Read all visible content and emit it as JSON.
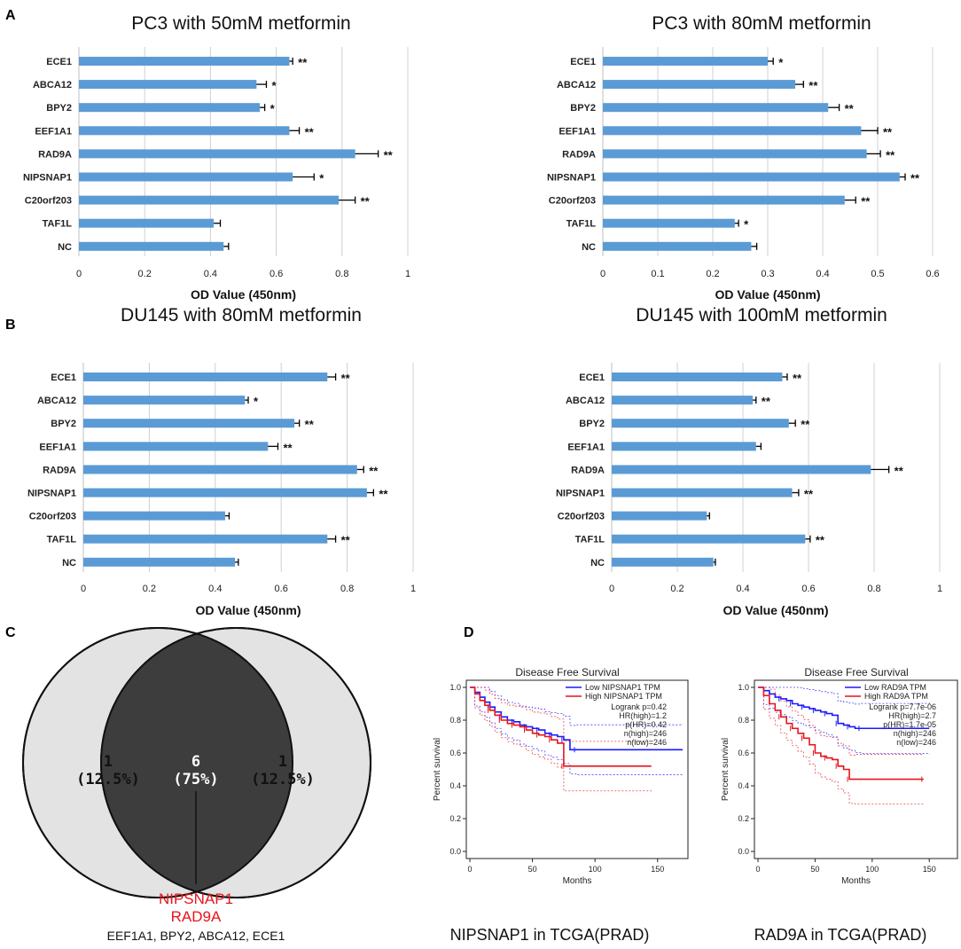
{
  "panel_letters": {
    "a": "A",
    "b": "B",
    "c": "C",
    "d": "D"
  },
  "colors": {
    "bar": "#5b9bd5",
    "low": "#1a1aff",
    "high": "#e8141c",
    "venn_fill": "#e3e3e3",
    "venn_overlap": "#3d3d3d",
    "highlight": "#e8141c"
  },
  "chart_data": [
    {
      "type": "bar",
      "orientation": "horizontal",
      "title": "PC3 with 50mM metformin",
      "xlabel": "OD Value (450nm)",
      "categories": [
        "ECE1",
        "ABCA12",
        "BPY2",
        "EEF1A1",
        "RAD9A",
        "NIPSNAP1",
        "C20orf203",
        "TAF1L",
        "NC"
      ],
      "values": [
        0.64,
        0.54,
        0.55,
        0.64,
        0.84,
        0.65,
        0.79,
        0.41,
        0.44
      ],
      "errors": [
        0.01,
        0.03,
        0.015,
        0.03,
        0.07,
        0.065,
        0.05,
        0.02,
        0.015
      ],
      "significance": [
        "**",
        "*",
        "*",
        "**",
        "**",
        "*",
        "**",
        "",
        ""
      ],
      "xlim": [
        0,
        1
      ],
      "xticks": [
        "0",
        "0.2",
        "0.4",
        "0.6",
        "0.8",
        "1"
      ]
    },
    {
      "type": "bar",
      "orientation": "horizontal",
      "title": "PC3 with 80mM metformin",
      "xlabel": "OD Value (450nm)",
      "categories": [
        "ECE1",
        "ABCA12",
        "BPY2",
        "EEF1A1",
        "RAD9A",
        "NIPSNAP1",
        "C20orf203",
        "TAF1L",
        "NC"
      ],
      "values": [
        0.3,
        0.35,
        0.41,
        0.47,
        0.48,
        0.54,
        0.44,
        0.24,
        0.27
      ],
      "errors": [
        0.01,
        0.015,
        0.02,
        0.03,
        0.025,
        0.01,
        0.02,
        0.007,
        0.01
      ],
      "significance": [
        "*",
        "**",
        "**",
        "**",
        "**",
        "**",
        "**",
        "*",
        ""
      ],
      "xlim": [
        0,
        0.6
      ],
      "xticks": [
        "0",
        "0.1",
        "0.2",
        "0.3",
        "0.4",
        "0.5",
        "0.6"
      ]
    },
    {
      "type": "bar",
      "orientation": "horizontal",
      "title": "DU145 with 80mM metformin",
      "xlabel": "OD Value (450nm)",
      "categories": [
        "ECE1",
        "ABCA12",
        "BPY2",
        "EEF1A1",
        "RAD9A",
        "NIPSNAP1",
        "C20orf203",
        "TAF1L",
        "NC"
      ],
      "values": [
        0.74,
        0.49,
        0.64,
        0.56,
        0.83,
        0.86,
        0.43,
        0.74,
        0.46
      ],
      "errors": [
        0.025,
        0.01,
        0.015,
        0.03,
        0.02,
        0.02,
        0.012,
        0.025,
        0.01
      ],
      "significance": [
        "**",
        "*",
        "**",
        "**",
        "**",
        "**",
        "",
        "**",
        ""
      ],
      "xlim": [
        0,
        1
      ],
      "xticks": [
        "0",
        "0.2",
        "0.4",
        "0.6",
        "0.8",
        "1"
      ]
    },
    {
      "type": "bar",
      "orientation": "horizontal",
      "title": "DU145 with 100mM metformin",
      "xlabel": "OD Value (450nm)",
      "categories": [
        "ECE1",
        "ABCA12",
        "BPY2",
        "EEF1A1",
        "RAD9A",
        "NIPSNAP1",
        "C20orf203",
        "TAF1L",
        "NC"
      ],
      "values": [
        0.52,
        0.43,
        0.54,
        0.44,
        0.79,
        0.55,
        0.29,
        0.59,
        0.31
      ],
      "errors": [
        0.015,
        0.01,
        0.02,
        0.015,
        0.055,
        0.02,
        0.008,
        0.015,
        0.006
      ],
      "significance": [
        "**",
        "**",
        "**",
        "",
        "**",
        "**",
        "",
        "**",
        ""
      ],
      "xlim": [
        0,
        1
      ],
      "xticks": [
        "0",
        "0.2",
        "0.4",
        "0.6",
        "0.8",
        "1"
      ]
    },
    {
      "type": "venn",
      "left": {
        "count": "1",
        "percent": "(12.5%)"
      },
      "overlap": {
        "count": "6",
        "percent": "(75%)"
      },
      "right": {
        "count": "1",
        "percent": "(12.5%)"
      },
      "highlight_genes": [
        "NIPSNAP1",
        "RAD9A"
      ],
      "other_genes": "EEF1A1, BPY2, ABCA12, ECE1"
    },
    {
      "type": "line",
      "subtype": "kaplan-meier",
      "title": "Disease Free Survival",
      "xlabel": "Months",
      "ylabel": "Percent survival",
      "caption": "NIPSNAP1 in TCGA(PRAD)",
      "xlim": [
        0,
        170
      ],
      "ylim": [
        0,
        1
      ],
      "xticks": [
        "0",
        "50",
        "100",
        "150"
      ],
      "yticks": [
        "0.0",
        "0.2",
        "0.4",
        "0.6",
        "0.8",
        "1.0"
      ],
      "legend": [
        "Low NIPSNAP1 TPM",
        "High NIPSNAP1 TPM"
      ],
      "stats": [
        "Logrank p=0.42",
        "HR(high)=1.2",
        "p(HR)=0.42",
        "n(high)=246",
        "n(low)=246"
      ],
      "series": [
        {
          "name": "Low NIPSNAP1 TPM",
          "x": [
            0,
            4,
            8,
            12,
            16,
            20,
            25,
            30,
            35,
            40,
            45,
            50,
            55,
            60,
            65,
            70,
            75,
            80,
            85,
            170
          ],
          "y": [
            1.0,
            0.97,
            0.94,
            0.91,
            0.88,
            0.85,
            0.82,
            0.8,
            0.79,
            0.77,
            0.76,
            0.75,
            0.74,
            0.72,
            0.71,
            0.7,
            0.68,
            0.62,
            0.62,
            0.62
          ]
        },
        {
          "name": "High NIPSNAP1 TPM",
          "x": [
            0,
            4,
            8,
            12,
            16,
            20,
            25,
            30,
            35,
            40,
            45,
            50,
            55,
            60,
            65,
            70,
            75,
            145
          ],
          "y": [
            1.0,
            0.96,
            0.92,
            0.89,
            0.86,
            0.83,
            0.8,
            0.78,
            0.77,
            0.76,
            0.74,
            0.72,
            0.71,
            0.7,
            0.68,
            0.66,
            0.52,
            0.52
          ]
        }
      ]
    },
    {
      "type": "line",
      "subtype": "kaplan-meier",
      "title": "Disease Free Survival",
      "xlabel": "Months",
      "ylabel": "Percent survival",
      "caption": "RAD9A in TCGA(PRAD)",
      "xlim": [
        0,
        170
      ],
      "ylim": [
        0,
        1
      ],
      "xticks": [
        "0",
        "50",
        "100",
        "150"
      ],
      "yticks": [
        "0.0",
        "0.2",
        "0.4",
        "0.6",
        "0.8",
        "1.0"
      ],
      "legend": [
        "Low RAD9A TPM",
        "High RAD9A TPM"
      ],
      "stats": [
        "Logrank p=7.7e-06",
        "HR(high)=2.7",
        "p(HR)=1.7e-05",
        "n(high)=246",
        "n(low)=246"
      ],
      "series": [
        {
          "name": "Low RAD9A TPM",
          "x": [
            0,
            5,
            10,
            15,
            20,
            25,
            30,
            35,
            40,
            45,
            50,
            55,
            60,
            65,
            70,
            75,
            80,
            85,
            90,
            150
          ],
          "y": [
            1.0,
            0.98,
            0.96,
            0.94,
            0.93,
            0.92,
            0.9,
            0.89,
            0.88,
            0.87,
            0.86,
            0.85,
            0.84,
            0.83,
            0.78,
            0.77,
            0.76,
            0.75,
            0.75,
            0.75
          ]
        },
        {
          "name": "High RAD9A TPM",
          "x": [
            0,
            5,
            10,
            15,
            20,
            25,
            30,
            35,
            40,
            45,
            50,
            55,
            60,
            65,
            70,
            75,
            80,
            85,
            145
          ],
          "y": [
            1.0,
            0.95,
            0.9,
            0.86,
            0.82,
            0.78,
            0.75,
            0.72,
            0.69,
            0.65,
            0.6,
            0.58,
            0.57,
            0.56,
            0.52,
            0.5,
            0.44,
            0.44,
            0.44
          ]
        }
      ]
    }
  ]
}
